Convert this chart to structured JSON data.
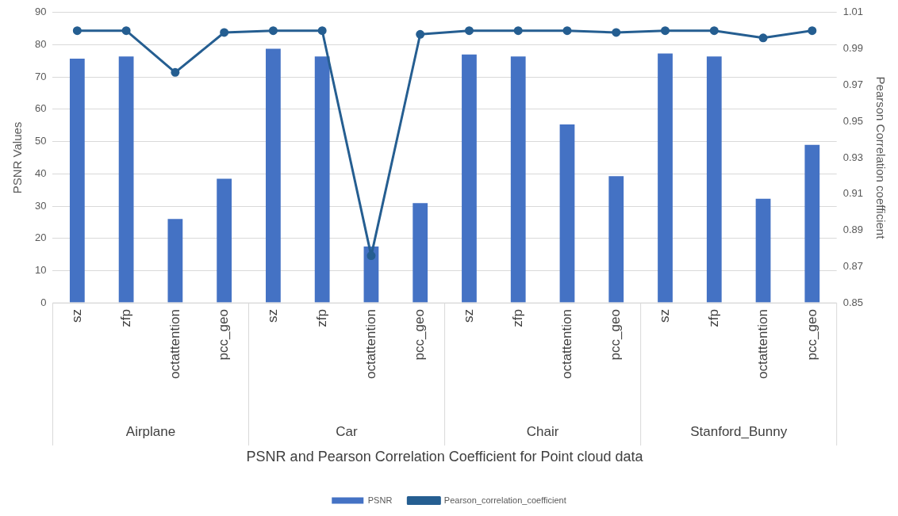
{
  "chart_data": {
    "type": "bar",
    "xlabel": "PSNR and Pearson Correlation Coefficient for Point cloud data",
    "ylabel": "PSNR Values",
    "y2label": "Pearson Correlation coefficient",
    "categories": [
      "sz",
      "zfp",
      "octattention",
      "pcc_geo",
      "sz",
      "zfp",
      "octattention",
      "pcc_geo",
      "sz",
      "zfp",
      "octattention",
      "pcc_geo",
      "sz",
      "zfp",
      "octattention",
      "pcc_geo"
    ],
    "annotations": [
      "Airplane",
      "Car",
      "Chair",
      "Stanford_Bunny"
    ],
    "series": [
      {
        "name": "PSNR",
        "color": "#4472c4",
        "values": [
          75.7,
          76.4,
          26.0,
          38.5,
          78.8,
          76.4,
          17.5,
          30.9,
          77.0,
          76.4,
          55.3,
          39.3,
          77.3,
          76.4,
          32.3,
          49.0
        ]
      },
      {
        "name": "Pearson_correlation_coefficient",
        "type": "line",
        "axis": "y2",
        "color": "#255e91",
        "values": [
          1.0,
          1.0,
          0.977,
          0.999,
          1.0,
          1.0,
          0.876,
          0.998,
          1.0,
          1.0,
          1.0,
          0.999,
          1.0,
          1.0,
          0.996,
          1.0
        ]
      }
    ],
    "ylim": [
      0,
      90
    ],
    "yticks": [
      0,
      10,
      20,
      30,
      40,
      50,
      60,
      70,
      80,
      90
    ],
    "y2lim": [
      0.85,
      1.01
    ],
    "y2ticks": [
      0.85,
      0.87,
      0.89,
      0.91,
      0.93,
      0.95,
      0.97,
      0.99,
      1.01
    ],
    "grid": "y",
    "legend": "bottom",
    "marker": "circle",
    "line_style": "solid"
  }
}
